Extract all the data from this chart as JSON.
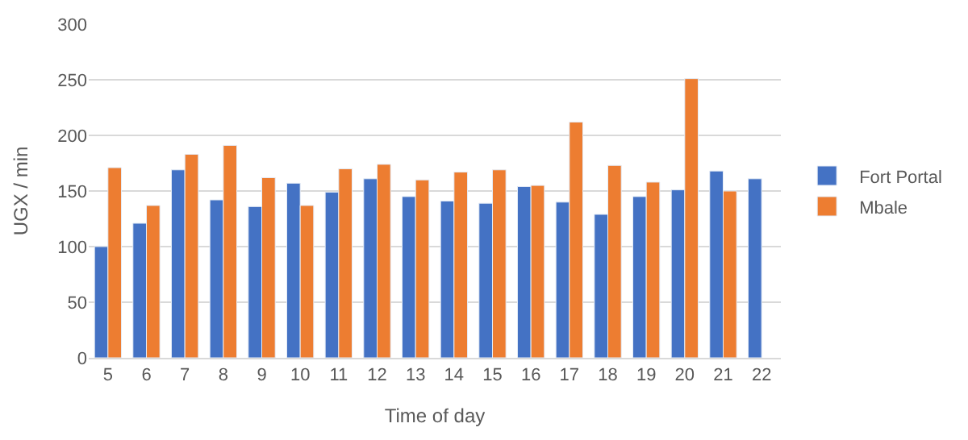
{
  "chart_data": {
    "type": "bar",
    "xlabel": "Time of day",
    "ylabel": "UGX / min",
    "categories": [
      "5",
      "6",
      "7",
      "8",
      "9",
      "10",
      "11",
      "12",
      "13",
      "14",
      "15",
      "16",
      "17",
      "18",
      "19",
      "20",
      "21",
      "22"
    ],
    "series": [
      {
        "name": "Fort Portal",
        "color": "#4472c4",
        "values": [
          100,
          121,
          169,
          142,
          136,
          157,
          149,
          161,
          145,
          141,
          139,
          154,
          140,
          129,
          145,
          151,
          168,
          161
        ]
      },
      {
        "name": "Mbale",
        "color": "#ed7d31",
        "values": [
          171,
          137,
          183,
          191,
          162,
          137,
          170,
          174,
          160,
          167,
          169,
          155,
          212,
          173,
          158,
          251,
          150,
          null
        ]
      }
    ],
    "ylim": [
      0,
      300
    ],
    "yticks": [
      0,
      50,
      100,
      150,
      200,
      250,
      300
    ],
    "grid": "y",
    "legend": "right"
  }
}
